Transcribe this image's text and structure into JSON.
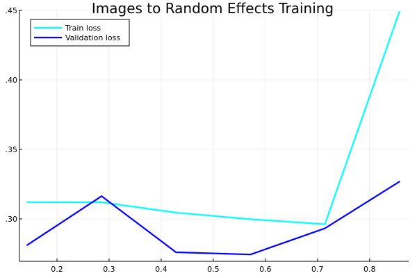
{
  "chart_data": {
    "type": "line",
    "title": "Images to Random Effects Training",
    "xlabel": "",
    "ylabel": "",
    "xlim": [
      0.128,
      0.875
    ],
    "ylim": [
      0.2695,
      0.4505
    ],
    "xticks": [
      0.2,
      0.3,
      0.4,
      0.5,
      0.6,
      0.7,
      0.8
    ],
    "xtick_labels": [
      "0.2",
      "0.3",
      "0.4",
      "0.5",
      "0.6",
      "0.7",
      "0.8"
    ],
    "yticks": [
      0.3,
      0.35,
      0.4,
      0.45
    ],
    "ytick_labels": [
      ".30",
      ".35",
      ".40",
      ".45"
    ],
    "grid": true,
    "legend_position": "top-left",
    "series": [
      {
        "name": "Train loss",
        "color": "#00ffff",
        "x": [
          0.1429,
          0.2857,
          0.4286,
          0.5714,
          0.7143,
          0.8571
        ],
        "y": [
          0.3121,
          0.312,
          0.3045,
          0.2998,
          0.2962,
          0.449
        ]
      },
      {
        "name": "Validation loss",
        "color": "#0000ff",
        "x": [
          0.1429,
          0.2857,
          0.4286,
          0.5714,
          0.7143,
          0.8571
        ],
        "y": [
          0.2812,
          0.3164,
          0.276,
          0.2744,
          0.2932,
          0.3268
        ]
      }
    ]
  }
}
